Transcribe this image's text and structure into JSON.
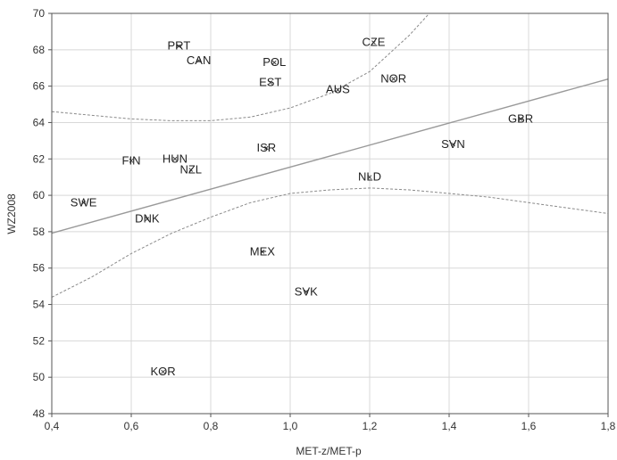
{
  "chart_data": {
    "type": "scatter",
    "title": "",
    "xlabel": "MET-z/MET-p",
    "ylabel": "WZ2008",
    "xlim": [
      0.4,
      1.8
    ],
    "ylim": [
      48,
      70
    ],
    "grid": true,
    "x_ticks": [
      "0,4",
      "0,6",
      "0,8",
      "1,0",
      "1,2",
      "1,4",
      "1,6",
      "1,8"
    ],
    "y_ticks": [
      "48",
      "50",
      "52",
      "54",
      "56",
      "58",
      "60",
      "62",
      "64",
      "66",
      "68",
      "70"
    ],
    "points": [
      {
        "label": "PRT",
        "x": 0.72,
        "y": 68.2
      },
      {
        "label": "CAN",
        "x": 0.77,
        "y": 67.4
      },
      {
        "label": "POL",
        "x": 0.96,
        "y": 67.3
      },
      {
        "label": "CZE",
        "x": 1.21,
        "y": 68.4
      },
      {
        "label": "EST",
        "x": 0.95,
        "y": 66.2
      },
      {
        "label": "AUS",
        "x": 1.12,
        "y": 65.8
      },
      {
        "label": "NOR",
        "x": 1.26,
        "y": 66.4
      },
      {
        "label": "GBR",
        "x": 1.58,
        "y": 64.2
      },
      {
        "label": "SVN",
        "x": 1.41,
        "y": 62.8
      },
      {
        "label": "ISR",
        "x": 0.94,
        "y": 62.6
      },
      {
        "label": "FIN",
        "x": 0.6,
        "y": 61.9
      },
      {
        "label": "HUN",
        "x": 0.71,
        "y": 62.0
      },
      {
        "label": "NZL",
        "x": 0.75,
        "y": 61.4
      },
      {
        "label": "NLD",
        "x": 1.2,
        "y": 61.0
      },
      {
        "label": "SWE",
        "x": 0.48,
        "y": 59.6
      },
      {
        "label": "DNK",
        "x": 0.64,
        "y": 58.7
      },
      {
        "label": "MEX",
        "x": 0.93,
        "y": 56.9
      },
      {
        "label": "SVK",
        "x": 1.04,
        "y": 54.7
      },
      {
        "label": "KOR",
        "x": 0.68,
        "y": 50.3
      }
    ],
    "regression": {
      "intercept": 55.5,
      "slope": 6.05,
      "x_range": [
        0.4,
        1.8
      ]
    },
    "confidence_upper": {
      "x": [
        0.4,
        0.5,
        0.6,
        0.7,
        0.8,
        0.9,
        1.0,
        1.1,
        1.2,
        1.3,
        1.35
      ],
      "y": [
        64.6,
        64.4,
        64.2,
        64.1,
        64.1,
        64.3,
        64.8,
        65.6,
        66.8,
        68.8,
        70.0
      ]
    },
    "confidence_lower": {
      "x": [
        0.4,
        0.5,
        0.6,
        0.7,
        0.8,
        0.9,
        1.0,
        1.1,
        1.2,
        1.3,
        1.4,
        1.5,
        1.6,
        1.7,
        1.8
      ],
      "y": [
        54.4,
        55.5,
        56.8,
        57.9,
        58.8,
        59.6,
        60.1,
        60.3,
        60.4,
        60.3,
        60.1,
        59.9,
        59.6,
        59.3,
        59.0
      ]
    },
    "colors": {
      "regression": "#9a9a9a",
      "confidence": "#8a8a8a",
      "grid": "#d8d8d8",
      "axis": "#555555"
    }
  }
}
